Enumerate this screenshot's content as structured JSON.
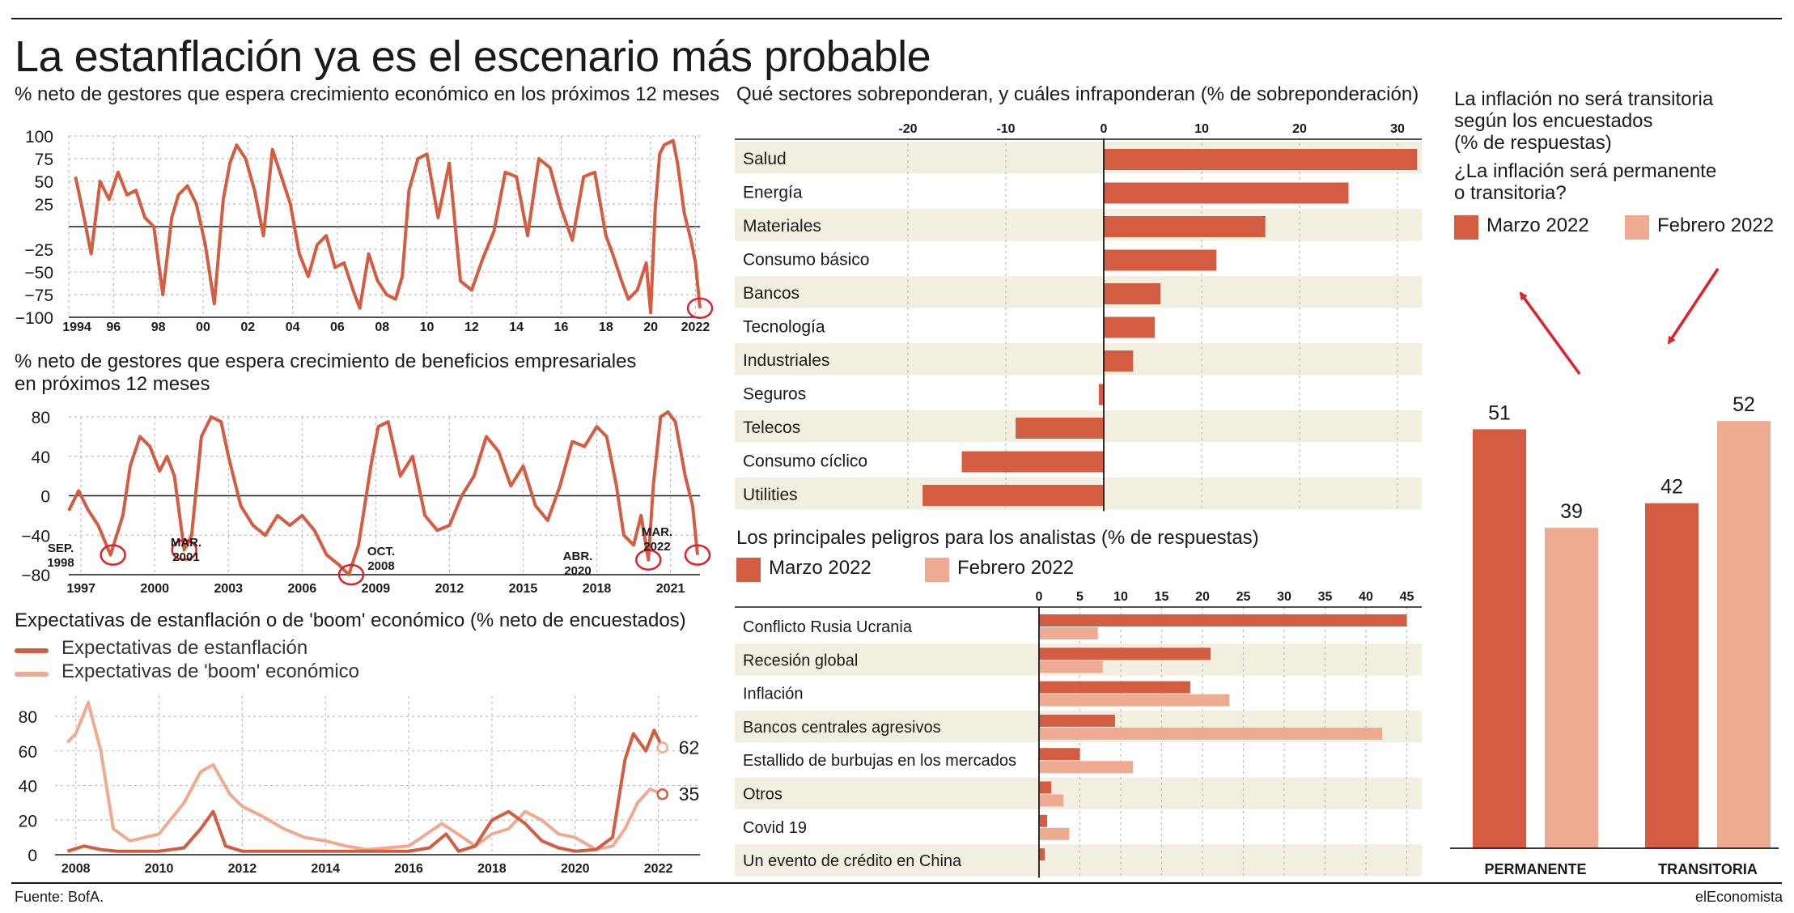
{
  "header": {
    "title": "La estanflación ya es el escenario más probable",
    "source": "Fuente: BofA.",
    "brand": "elEconomista"
  },
  "colors": {
    "march": "#d45c41",
    "february": "#eeab92",
    "stripe": "#f2efe0",
    "grid": "#bdbdbd",
    "marker": "#e0202a"
  },
  "growth": {
    "title": "% neto de gestores que espera crecimiento económico en los próximos 12 meses",
    "ylim": [
      -100,
      100
    ],
    "yticks": [
      "100",
      "75",
      "50",
      "25",
      "−25",
      "−50",
      "−75",
      "−100"
    ],
    "xticks": [
      "1994",
      "96",
      "98",
      "00",
      "02",
      "04",
      "06",
      "08",
      "10",
      "12",
      "14",
      "16",
      "18",
      "20",
      "2022"
    ]
  },
  "profits": {
    "title_line1": "% neto de gestores que espera crecimiento de beneficios empresariales",
    "title_line2": "en próximos 12 meses",
    "ylim": [
      -80,
      80
    ],
    "yticks": [
      "80",
      "40",
      "0",
      "−40",
      "−80"
    ],
    "xticks": [
      "1997",
      "2000",
      "2003",
      "2006",
      "2009",
      "2012",
      "2015",
      "2018",
      "2021"
    ],
    "annotations": [
      {
        "l1": "SEP.",
        "l2": "1998"
      },
      {
        "l1": "MAR.",
        "l2": "2001"
      },
      {
        "l1": "OCT.",
        "l2": "2008"
      },
      {
        "l1": "ABR.",
        "l2": "2020"
      },
      {
        "l1": "MAR.",
        "l2": "2022"
      }
    ]
  },
  "stagflation": {
    "title": "Expectativas de estanflación o de 'boom' económico (% neto de encuestados)",
    "legend_stag": "Expectativas de estanflación",
    "legend_boom": "Expectativas de 'boom' económico",
    "yticks": [
      "80",
      "60",
      "40",
      "20",
      "0"
    ],
    "xticks": [
      "2008",
      "2010",
      "2012",
      "2014",
      "2016",
      "2018",
      "2020",
      "2022"
    ],
    "end_stag": "62",
    "end_boom": "35"
  },
  "sectors": {
    "title": "Qué sectores sobreponderan, y cuáles infraponderan (% de sobreponderación)",
    "xticks": [
      "-20",
      "-10",
      "0",
      "10",
      "20",
      "30"
    ]
  },
  "risks": {
    "title": "Los principales peligros para los analistas (% de respuestas)",
    "legend_march": "Marzo 2022",
    "legend_feb": "Febrero 2022",
    "xticks": [
      "0",
      "5",
      "10",
      "15",
      "20",
      "25",
      "30",
      "35",
      "40",
      "45"
    ]
  },
  "inflation": {
    "title_line1": "La inflación no será transitoria",
    "title_line2": "según los encuestados",
    "title_line3": "(% de respuestas)",
    "question_line1": "¿La inflación será permanente",
    "question_line2": "o transitoria?",
    "legend_march": "Marzo 2022",
    "legend_feb": "Febrero 2022"
  },
  "chart_data": [
    {
      "type": "line",
      "title": "% neto de gestores que espera crecimiento económico en los próximos 12 meses",
      "x_range": [
        1994,
        2022.2
      ],
      "ylim": [
        -100,
        100
      ],
      "series": [
        {
          "x": [
            1994.3,
            1994.6,
            1995.0,
            1995.4,
            1995.8,
            1996.2,
            1996.6,
            1997.0,
            1997.4,
            1997.8,
            1998.2,
            1998.6,
            1998.9,
            1999.3,
            1999.7,
            2000.1,
            2000.5,
            2000.9,
            2001.2,
            2001.5,
            2001.9,
            2002.3,
            2002.7,
            2003.1,
            2003.5,
            2003.9,
            2004.3,
            2004.7,
            2005.1,
            2005.5,
            2005.9,
            2006.3,
            2006.7,
            2007.0,
            2007.4,
            2007.8,
            2008.2,
            2008.6,
            2008.9,
            2009.2,
            2009.6,
            2010.0,
            2010.5,
            2011.0,
            2011.5,
            2012.0,
            2012.5,
            2013.0,
            2013.5,
            2014.0,
            2014.5,
            2015.0,
            2015.5,
            2016.0,
            2016.5,
            2017.0,
            2017.5,
            2018.0,
            2018.3,
            2018.7,
            2019.0,
            2019.4,
            2019.8,
            2020.0,
            2020.2,
            2020.4,
            2020.6,
            2021.0,
            2021.2,
            2021.5,
            2021.8,
            2022.0,
            2022.2
          ],
          "y": [
            55,
            20,
            -30,
            50,
            30,
            60,
            35,
            40,
            10,
            0,
            -75,
            10,
            35,
            45,
            25,
            -20,
            -85,
            30,
            70,
            90,
            75,
            40,
            -10,
            85,
            55,
            25,
            -30,
            -55,
            -20,
            -10,
            -45,
            -40,
            -70,
            -90,
            -30,
            -60,
            -75,
            -80,
            -55,
            40,
            75,
            80,
            10,
            70,
            -60,
            -70,
            -35,
            -5,
            60,
            55,
            -10,
            75,
            65,
            20,
            -15,
            55,
            60,
            -10,
            -30,
            -60,
            -80,
            -70,
            -40,
            -95,
            20,
            80,
            90,
            95,
            70,
            15,
            -15,
            -40,
            -90
          ]
        }
      ]
    },
    {
      "type": "line",
      "title": "% neto de gestores que espera crecimiento de beneficios empresariales en próximos 12 meses",
      "x_range": [
        1996.5,
        2022.2
      ],
      "ylim": [
        -80,
        80
      ],
      "series": [
        {
          "x": [
            1996.5,
            1996.9,
            1997.3,
            1997.7,
            1998.2,
            1998.7,
            1999.0,
            1999.4,
            1999.8,
            2000.2,
            2000.5,
            2000.8,
            2001.2,
            2001.5,
            2001.9,
            2002.3,
            2002.7,
            2003.0,
            2003.5,
            2004.0,
            2004.5,
            2005.0,
            2005.5,
            2006.0,
            2006.5,
            2007.0,
            2007.5,
            2007.9,
            2008.3,
            2008.8,
            2009.1,
            2009.5,
            2010.0,
            2010.5,
            2011.0,
            2011.5,
            2012.0,
            2012.5,
            2013.0,
            2013.5,
            2014.0,
            2014.5,
            2015.0,
            2015.5,
            2016.0,
            2016.5,
            2017.0,
            2017.5,
            2018.0,
            2018.4,
            2018.8,
            2019.1,
            2019.5,
            2019.8,
            2020.1,
            2020.3,
            2020.6,
            2020.9,
            2021.2,
            2021.6,
            2021.9,
            2022.1
          ],
          "y": [
            -15,
            5,
            -15,
            -30,
            -60,
            -20,
            30,
            60,
            50,
            25,
            40,
            20,
            -55,
            -40,
            60,
            80,
            75,
            40,
            -10,
            -30,
            -40,
            -20,
            -30,
            -20,
            -35,
            -60,
            -70,
            -80,
            -50,
            30,
            70,
            75,
            20,
            40,
            -20,
            -35,
            -30,
            0,
            20,
            60,
            45,
            10,
            30,
            -10,
            -25,
            10,
            55,
            50,
            70,
            60,
            10,
            -40,
            -50,
            -20,
            -65,
            10,
            80,
            85,
            75,
            20,
            -10,
            -60
          ]
        }
      ],
      "annotations": [
        "SEP. 1998",
        "MAR. 2001",
        "OCT. 2008",
        "ABR. 2020",
        "MAR. 2022"
      ]
    },
    {
      "type": "line",
      "title": "Expectativas de estanflación o de 'boom' económico (% neto de encuestados)",
      "x_range": [
        2007.5,
        2023
      ],
      "ylim": [
        0,
        90
      ],
      "series": [
        {
          "name": "Expectativas de estanflación",
          "x": [
            2007.8,
            2008.2,
            2008.6,
            2009.0,
            2010.0,
            2010.6,
            2011.0,
            2011.3,
            2011.6,
            2012.0,
            2013.0,
            2014.0,
            2015.0,
            2016.0,
            2016.5,
            2016.9,
            2017.2,
            2017.6,
            2018.0,
            2018.4,
            2018.8,
            2019.2,
            2019.6,
            2020.0,
            2020.5,
            2020.9,
            2021.2,
            2021.4,
            2021.7,
            2021.9,
            2022.1
          ],
          "y": [
            2,
            5,
            3,
            2,
            2,
            4,
            15,
            25,
            5,
            2,
            2,
            2,
            2,
            2,
            4,
            12,
            2,
            5,
            20,
            25,
            18,
            8,
            4,
            2,
            3,
            10,
            55,
            70,
            60,
            72,
            62
          ]
        },
        {
          "name": "Expectativas de 'boom' económico",
          "x": [
            2007.8,
            2008.0,
            2008.3,
            2008.6,
            2008.9,
            2009.3,
            2010.0,
            2010.6,
            2011.0,
            2011.3,
            2011.7,
            2012.0,
            2012.5,
            2013.0,
            2013.5,
            2014.0,
            2014.5,
            2015.0,
            2016.0,
            2016.8,
            2017.3,
            2017.6,
            2018.0,
            2018.4,
            2018.8,
            2019.2,
            2019.6,
            2020.0,
            2020.5,
            2020.9,
            2021.2,
            2021.5,
            2021.8,
            2022.1
          ],
          "y": [
            65,
            70,
            88,
            60,
            15,
            8,
            12,
            30,
            48,
            52,
            35,
            28,
            22,
            15,
            10,
            8,
            5,
            3,
            5,
            18,
            10,
            5,
            12,
            15,
            25,
            20,
            12,
            10,
            3,
            5,
            15,
            30,
            38,
            35
          ]
        }
      ],
      "end_labels": {
        "stag": 62,
        "boom": 35
      }
    },
    {
      "type": "bar",
      "title": "Qué sectores sobreponderan, y cuáles infraponderan (% de sobreponderación)",
      "orientation": "horizontal",
      "xlim": [
        -20,
        32
      ],
      "categories": [
        "Salud",
        "Energía",
        "Materiales",
        "Consumo básico",
        "Bancos",
        "Tecnología",
        "Industriales",
        "Seguros",
        "Telecos",
        "Consumo cíclico",
        "Utilities"
      ],
      "values": [
        32,
        25,
        16.5,
        11.5,
        5.8,
        5.2,
        3,
        -0.5,
        -9,
        -14.5,
        -18.5
      ]
    },
    {
      "type": "bar",
      "title": "Los principales peligros para los analistas (% de respuestas)",
      "orientation": "horizontal",
      "xlim": [
        0,
        47
      ],
      "categories": [
        "Conflicto Rusia Ucrania",
        "Recesión global",
        "Inflación",
        "Bancos centrales agresivos",
        "Estallido de burbujas en los mercados",
        "Otros",
        "Covid 19",
        "Un evento de crédito en China"
      ],
      "series": [
        {
          "name": "Marzo 2022",
          "values": [
            45,
            21,
            18.5,
            9.3,
            5,
            1.5,
            1,
            0.7
          ]
        },
        {
          "name": "Febrero 2022",
          "values": [
            7.2,
            7.8,
            23.3,
            42,
            11.5,
            3,
            3.7,
            0
          ]
        }
      ]
    },
    {
      "type": "bar",
      "title": "La inflación no será transitoria según los encuestados (% de respuestas)",
      "categories": [
        "PERMANENTE",
        "TRANSITORIA"
      ],
      "series": [
        {
          "name": "Marzo 2022",
          "values": [
            51,
            42
          ]
        },
        {
          "name": "Febrero 2022",
          "values": [
            39,
            52
          ]
        }
      ],
      "ylim": [
        0,
        60
      ]
    }
  ]
}
